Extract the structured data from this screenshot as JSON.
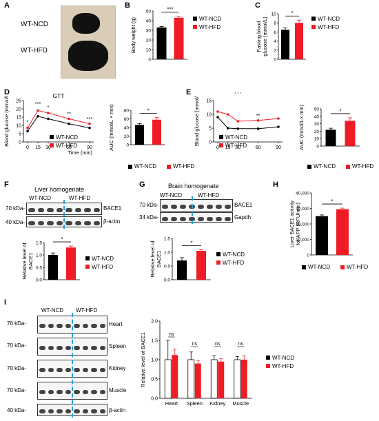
{
  "panels": {
    "A": {
      "letter": "A",
      "labels": [
        "WT-NCD",
        "WT-HFD"
      ]
    },
    "B": {
      "letter": "B"
    },
    "C": {
      "letter": "C"
    },
    "D": {
      "letter": "D",
      "title": "GTT",
      "legend": [
        "WT-NCD",
        "WT-HFD"
      ]
    },
    "E": {
      "letter": "E",
      "legend": [
        "WT-NCD",
        "WT-HFD"
      ]
    },
    "F": {
      "letter": "F",
      "blot_title": "Liver homogenate",
      "group_labels": [
        "WT-NCD",
        "WT-HFD"
      ],
      "kda": [
        "70 kDa-",
        "40 kDa-"
      ],
      "proteins": [
        "BACE1",
        "β-actin"
      ],
      "legend": [
        "WT-NCD",
        "WT-HFD"
      ]
    },
    "G": {
      "letter": "G",
      "blot_title": "Brain homogenate",
      "group_labels": [
        "WT-NCD",
        "WT-HFD"
      ],
      "kda": [
        "70 kDa-",
        "34 kDa-"
      ],
      "proteins": [
        "BACE1",
        "Gapdh"
      ],
      "legend": [
        "WT-NCD",
        "WT-HFD"
      ]
    },
    "H": {
      "letter": "H",
      "legend": [
        "WT-NCD",
        "WT-HFD"
      ]
    },
    "I": {
      "letter": "I",
      "group_labels": [
        "WT-NCD",
        "WT-HFD"
      ],
      "kda": [
        "70 kDa-",
        "70 kDa-",
        "70 kDa-",
        "70 kDa-",
        "40 kDa-"
      ],
      "tissues": [
        "Heart",
        "Spleen",
        "Kidney",
        "Muscle",
        "β-actin"
      ],
      "legend": [
        "WT-NCD",
        "WT-HFD"
      ]
    }
  },
  "colors": {
    "ncd": "#000000",
    "hfd": "#ee1c25",
    "divider": "#2a9fd6"
  },
  "chart_data": [
    {
      "id": "B",
      "type": "bar",
      "categories": [
        "WT-NCD",
        "WT-HFD"
      ],
      "values": [
        33,
        43
      ],
      "errors": [
        1,
        1.5
      ],
      "ylabel": "Body weight (g)",
      "ylim": [
        0,
        50
      ],
      "yticks": [
        0,
        10,
        20,
        30,
        40,
        50
      ],
      "significance": "***"
    },
    {
      "id": "C",
      "type": "bar",
      "categories": [
        "WT-NCD",
        "WT-HFD"
      ],
      "values": [
        6.5,
        8.0
      ],
      "errors": [
        0.4,
        0.6
      ],
      "ylabel": "Fasting blood glucose (mmol/L)",
      "ylim": [
        0,
        10
      ],
      "yticks": [
        0,
        2,
        4,
        6,
        8,
        10
      ],
      "significance": "*"
    },
    {
      "id": "D",
      "type": "line",
      "title": "GTT",
      "x": [
        0,
        15,
        30,
        60,
        90
      ],
      "xlabel": "Time (min)",
      "ylabel": "Blood glucose (mmol/l",
      "ylim": [
        0,
        25
      ],
      "yticks": [
        0,
        5,
        10,
        15,
        20,
        25
      ],
      "series": [
        {
          "name": "WT-NCD",
          "values": [
            6.5,
            15.5,
            14,
            11,
            8.5
          ]
        },
        {
          "name": "WT-HFD",
          "values": [
            8.5,
            19,
            17.5,
            14,
            11
          ]
        }
      ],
      "annotations": [
        "*",
        "***",
        "*",
        "**",
        "***"
      ]
    },
    {
      "id": "D2",
      "type": "bar",
      "categories": [
        "WT-NCD",
        "WT-HFD"
      ],
      "values": [
        46,
        58
      ],
      "errors": [
        3,
        5
      ],
      "ylabel": "AUC (mmol/L × min)",
      "ylim": [
        0,
        80
      ],
      "yticks": [
        0,
        20,
        40,
        60,
        80
      ],
      "significance": "*"
    },
    {
      "id": "E",
      "type": "line",
      "x": [
        0,
        15,
        30,
        60,
        90
      ],
      "ylabel": "Blood glucose (mmol/",
      "ylim": [
        0,
        15
      ],
      "yticks": [
        0,
        5,
        10,
        15
      ],
      "series": [
        {
          "name": "WT-NCD",
          "values": [
            9,
            5,
            4.8,
            4.8,
            5.5
          ]
        },
        {
          "name": "WT-HFD",
          "values": [
            11,
            10,
            7.5,
            7.8,
            8.5
          ]
        }
      ],
      "annotations": [
        "**"
      ],
      "title_marks": "' ' '"
    },
    {
      "id": "E2",
      "type": "bar",
      "categories": [
        "WT-NCD",
        "WT-HFD"
      ],
      "values": [
        22,
        34
      ],
      "errors": [
        2,
        4
      ],
      "ylabel": "AUC (mmol/L× min)",
      "ylim": [
        0,
        50
      ],
      "yticks": [
        0,
        10,
        20,
        30,
        40,
        50
      ],
      "significance": "*"
    },
    {
      "id": "F",
      "type": "bar",
      "categories": [
        "WT-NCD",
        "WT-HFD"
      ],
      "values": [
        1.0,
        1.3
      ],
      "errors": [
        0.08,
        0.06
      ],
      "ylabel": "Relative level of BACE1",
      "ylim": [
        0,
        1.5
      ],
      "yticks": [
        "0.0",
        "0.5",
        "1.0",
        "1.5"
      ],
      "significance": "*"
    },
    {
      "id": "G",
      "type": "bar",
      "categories": [
        "WT-NCD",
        "WT-HFD"
      ],
      "values": [
        0.7,
        1.05
      ],
      "errors": [
        0.1,
        0.04
      ],
      "ylabel": "Relative level of BACE1",
      "ylim": [
        0,
        1.5
      ],
      "yticks": [
        "0.0",
        "0.5",
        "1.0",
        "1.5"
      ],
      "significance": "*"
    },
    {
      "id": "H",
      "type": "bar",
      "categories": [
        "WT-NCD",
        "WT-HFD"
      ],
      "values": [
        25000,
        29500
      ],
      "errors": [
        800,
        700
      ],
      "ylabel": "Liver BACE1 activity for APP (RFU/min)",
      "ylim": [
        0,
        40000
      ],
      "yticks": [
        "0",
        "10,000",
        "20,000",
        "30,000",
        "40,000"
      ],
      "significance": "*"
    },
    {
      "id": "I",
      "type": "bar",
      "categories": [
        "Heart",
        "Spleen",
        "Kidney",
        "Muscle"
      ],
      "ylabel": "Relative level of BACE1",
      "ylim": [
        0,
        2.0
      ],
      "yticks": [
        "0.0",
        "0.5",
        "1.0",
        "1.5",
        "2.0"
      ],
      "series": [
        {
          "name": "WT-NCD",
          "values": [
            1.0,
            1.0,
            1.0,
            1.0
          ],
          "errors": [
            0.5,
            0.2,
            0.1,
            0.08
          ]
        },
        {
          "name": "WT-HFD",
          "values": [
            1.12,
            0.9,
            0.95,
            1.0
          ],
          "errors": [
            0.15,
            0.08,
            0.08,
            0.1
          ]
        }
      ],
      "annotations": [
        "ns",
        "ns",
        "ns",
        "ns"
      ]
    }
  ]
}
